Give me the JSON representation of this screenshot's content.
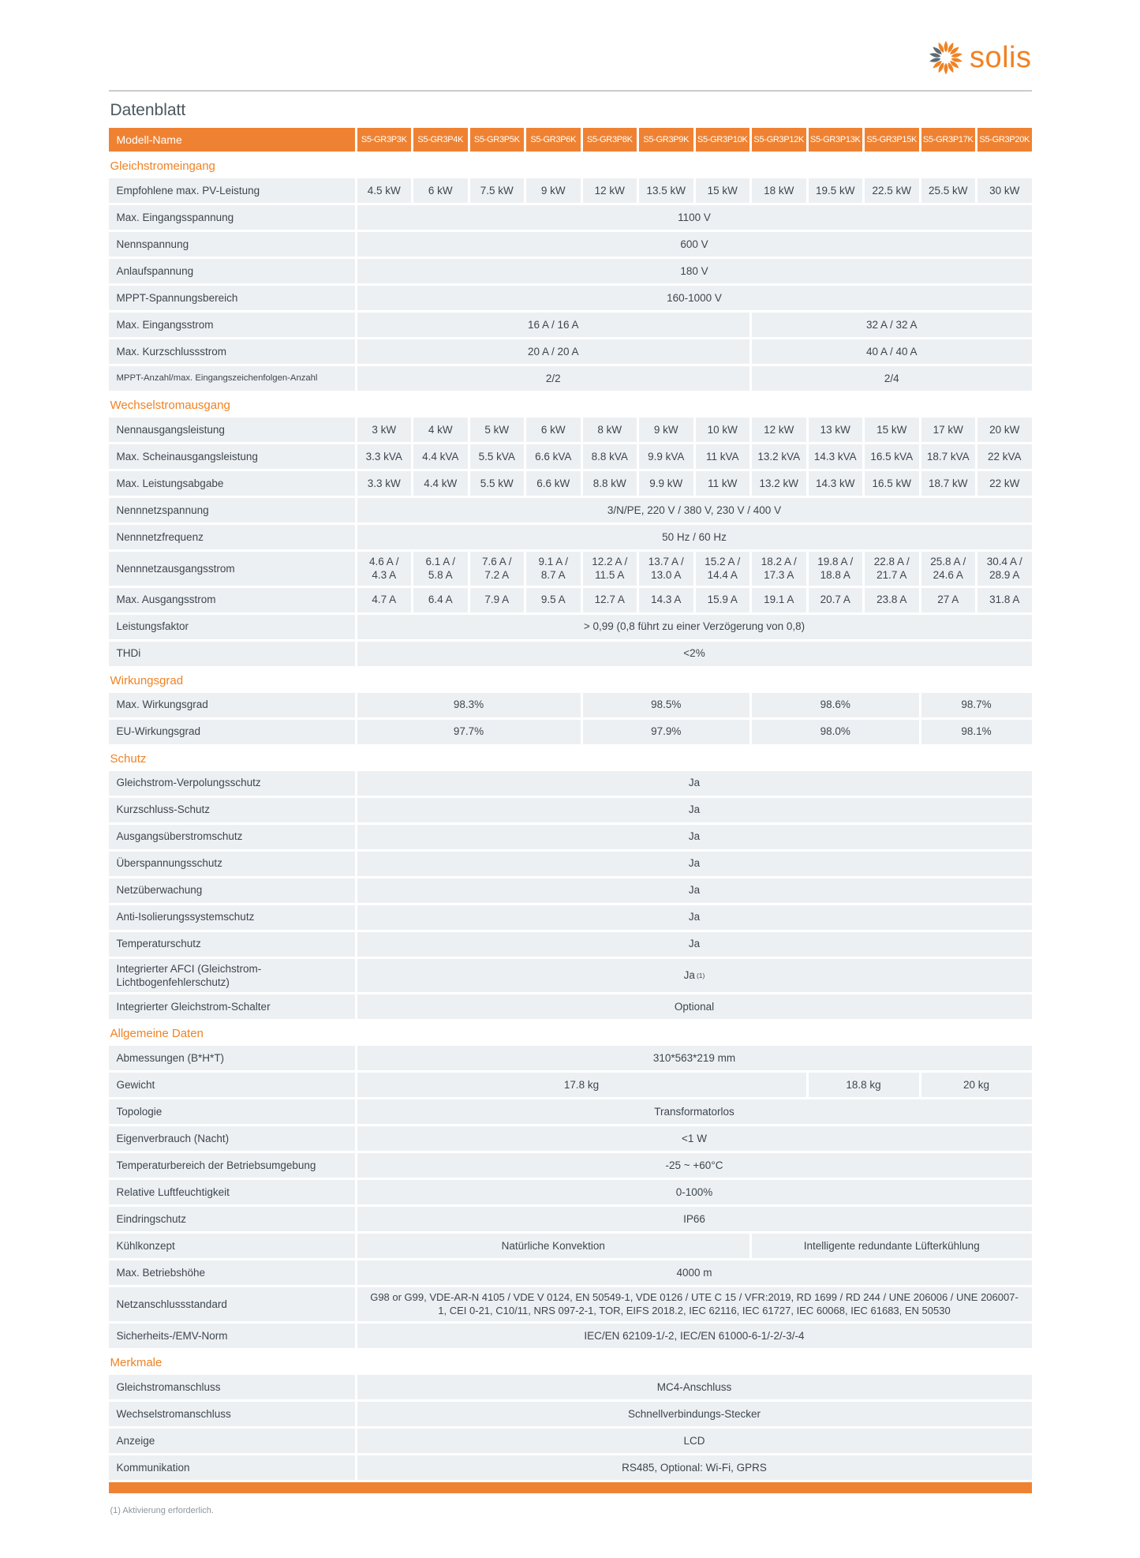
{
  "page": {
    "title": "Datenblatt",
    "footnote": "(1) Aktivierung erforderlich."
  },
  "brand": {
    "name": "solis",
    "logo_icon": "sun-swirl-icon",
    "accent_color": "#f08223"
  },
  "colors": {
    "header_fill": "#ef8232",
    "row_fill": "#edf0f3",
    "text": "#3d464e",
    "section_title": "#f08223",
    "bottom_bar": "#ef8232"
  },
  "table": {
    "header": {
      "label": "Modell-Name",
      "models": [
        "S5-GR3P3K",
        "S5-GR3P4K",
        "S5-GR3P5K",
        "S5-GR3P6K",
        "S5-GR3P8K",
        "S5-GR3P9K",
        "S5-GR3P10K",
        "S5-GR3P12K",
        "S5-GR3P13K",
        "S5-GR3P15K",
        "S5-GR3P17K",
        "S5-GR3P20K"
      ]
    },
    "sections": [
      {
        "title": "Gleichstromeingang",
        "rows": [
          {
            "label": "Empfohlene max. PV-Leistung",
            "cells": [
              {
                "t": "4.5 kW"
              },
              {
                "t": "6 kW"
              },
              {
                "t": "7.5 kW"
              },
              {
                "t": "9 kW"
              },
              {
                "t": "12 kW"
              },
              {
                "t": "13.5 kW"
              },
              {
                "t": "15 kW"
              },
              {
                "t": "18 kW"
              },
              {
                "t": "19.5 kW"
              },
              {
                "t": "22.5 kW"
              },
              {
                "t": "25.5 kW"
              },
              {
                "t": "30 kW"
              }
            ]
          },
          {
            "label": "Max. Eingangsspannung",
            "cells": [
              {
                "t": "1100 V",
                "s": 12
              }
            ]
          },
          {
            "label": "Nennspannung",
            "cells": [
              {
                "t": "600 V",
                "s": 12
              }
            ]
          },
          {
            "label": "Anlaufspannung",
            "cells": [
              {
                "t": "180 V",
                "s": 12
              }
            ]
          },
          {
            "label": "MPPT-Spannungsbereich",
            "cells": [
              {
                "t": "160-1000 V",
                "s": 12
              }
            ]
          },
          {
            "label": "Max. Eingangsstrom",
            "cells": [
              {
                "t": "16 A / 16 A",
                "s": 7
              },
              {
                "t": "32 A / 32 A",
                "s": 5
              }
            ]
          },
          {
            "label": "Max. Kurzschlussstrom",
            "cells": [
              {
                "t": "20 A / 20 A",
                "s": 7
              },
              {
                "t": "40 A / 40 A",
                "s": 5
              }
            ]
          },
          {
            "label": "MPPT-Anzahl/max. Eingangszeichenfolgen-Anzahl",
            "small": true,
            "cells": [
              {
                "t": "2/2",
                "s": 7
              },
              {
                "t": "2/4",
                "s": 5
              }
            ]
          }
        ]
      },
      {
        "title": "Wechselstromausgang",
        "rows": [
          {
            "label": "Nennausgangsleistung",
            "cells": [
              {
                "t": "3 kW"
              },
              {
                "t": "4 kW"
              },
              {
                "t": "5 kW"
              },
              {
                "t": "6 kW"
              },
              {
                "t": "8 kW"
              },
              {
                "t": "9 kW"
              },
              {
                "t": "10 kW"
              },
              {
                "t": "12 kW"
              },
              {
                "t": "13 kW"
              },
              {
                "t": "15 kW"
              },
              {
                "t": "17 kW"
              },
              {
                "t": "20 kW"
              }
            ]
          },
          {
            "label": "Max. Scheinausgangsleistung",
            "cells": [
              {
                "t": "3.3 kVA"
              },
              {
                "t": "4.4 kVA"
              },
              {
                "t": "5.5 kVA"
              },
              {
                "t": "6.6 kVA"
              },
              {
                "t": "8.8 kVA"
              },
              {
                "t": "9.9 kVA"
              },
              {
                "t": "11 kVA"
              },
              {
                "t": "13.2 kVA"
              },
              {
                "t": "14.3 kVA"
              },
              {
                "t": "16.5 kVA"
              },
              {
                "t": "18.7 kVA"
              },
              {
                "t": "22 kVA"
              }
            ]
          },
          {
            "label": "Max. Leistungsabgabe",
            "cells": [
              {
                "t": "3.3 kW"
              },
              {
                "t": "4.4 kW"
              },
              {
                "t": "5.5 kW"
              },
              {
                "t": "6.6 kW"
              },
              {
                "t": "8.8 kW"
              },
              {
                "t": "9.9 kW"
              },
              {
                "t": "11 kW"
              },
              {
                "t": "13.2 kW"
              },
              {
                "t": "14.3 kW"
              },
              {
                "t": "16.5 kW"
              },
              {
                "t": "18.7 kW"
              },
              {
                "t": "22 kW"
              }
            ]
          },
          {
            "label": "Nennnetzspannung",
            "cells": [
              {
                "t": "3/N/PE, 220 V / 380 V, 230 V / 400 V",
                "s": 12
              }
            ]
          },
          {
            "label": "Nennnetzfrequenz",
            "cells": [
              {
                "t": "50 Hz / 60 Hz",
                "s": 12
              }
            ]
          },
          {
            "label": "Nennnetzausgangsstrom",
            "cells": [
              {
                "t": "4.6 A /\n4.3 A"
              },
              {
                "t": "6.1 A /\n5.8 A"
              },
              {
                "t": "7.6 A /\n7.2 A"
              },
              {
                "t": "9.1 A /\n8.7 A"
              },
              {
                "t": "12.2 A /\n11.5 A"
              },
              {
                "t": "13.7 A /\n13.0 A"
              },
              {
                "t": "15.2 A /\n14.4 A"
              },
              {
                "t": "18.2 A /\n17.3 A"
              },
              {
                "t": "19.8 A /\n18.8 A"
              },
              {
                "t": "22.8 A /\n21.7 A"
              },
              {
                "t": "25.8 A /\n24.6 A"
              },
              {
                "t": "30.4 A /\n28.9 A"
              }
            ]
          },
          {
            "label": "Max. Ausgangsstrom",
            "cells": [
              {
                "t": "4.7 A"
              },
              {
                "t": "6.4 A"
              },
              {
                "t": "7.9 A"
              },
              {
                "t": "9.5 A"
              },
              {
                "t": "12.7 A"
              },
              {
                "t": "14.3 A"
              },
              {
                "t": "15.9 A"
              },
              {
                "t": "19.1 A"
              },
              {
                "t": "20.7 A"
              },
              {
                "t": "23.8 A"
              },
              {
                "t": "27 A"
              },
              {
                "t": "31.8 A"
              }
            ]
          },
          {
            "label": "Leistungsfaktor",
            "cells": [
              {
                "t": "> 0,99 (0,8 führt zu einer Verzögerung von 0,8)",
                "s": 12
              }
            ]
          },
          {
            "label": "THDi",
            "cells": [
              {
                "t": "<2%",
                "s": 12
              }
            ]
          }
        ]
      },
      {
        "title": "Wirkungsgrad",
        "rows": [
          {
            "label": "Max. Wirkungsgrad",
            "cells": [
              {
                "t": "98.3%",
                "s": 4
              },
              {
                "t": "98.5%",
                "s": 3
              },
              {
                "t": "98.6%",
                "s": 3
              },
              {
                "t": "98.7%",
                "s": 2
              }
            ]
          },
          {
            "label": "EU-Wirkungsgrad",
            "cells": [
              {
                "t": "97.7%",
                "s": 4
              },
              {
                "t": "97.9%",
                "s": 3
              },
              {
                "t": "98.0%",
                "s": 3
              },
              {
                "t": "98.1%",
                "s": 2
              }
            ]
          }
        ]
      },
      {
        "title": "Schutz",
        "rows": [
          {
            "label": "Gleichstrom-Verpolungsschutz",
            "cells": [
              {
                "t": "Ja",
                "s": 12
              }
            ]
          },
          {
            "label": "Kurzschluss-Schutz",
            "cells": [
              {
                "t": "Ja",
                "s": 12
              }
            ]
          },
          {
            "label": "Ausgangsüberstromschutz",
            "cells": [
              {
                "t": "Ja",
                "s": 12
              }
            ]
          },
          {
            "label": "Überspannungsschutz",
            "cells": [
              {
                "t": "Ja",
                "s": 12
              }
            ]
          },
          {
            "label": "Netzüberwachung",
            "cells": [
              {
                "t": "Ja",
                "s": 12
              }
            ]
          },
          {
            "label": "Anti-Isolierungssystemschutz",
            "cells": [
              {
                "t": "Ja",
                "s": 12
              }
            ]
          },
          {
            "label": "Temperaturschutz",
            "cells": [
              {
                "t": "Ja",
                "s": 12
              }
            ]
          },
          {
            "label": "Integrierter AFCI (Gleichstrom-\nLichtbogenfehlerschutz)",
            "cells": [
              {
                "t": "Ja",
                "sup": "(1)",
                "s": 12
              }
            ]
          },
          {
            "label": "Integrierter Gleichstrom-Schalter",
            "cells": [
              {
                "t": "Optional",
                "s": 12
              }
            ]
          }
        ]
      },
      {
        "title": "Allgemeine Daten",
        "rows": [
          {
            "label": "Abmessungen (B*H*T)",
            "cells": [
              {
                "t": "310*563*219 mm",
                "s": 12
              }
            ]
          },
          {
            "label": "Gewicht",
            "cells": [
              {
                "t": "17.8 kg",
                "s": 8
              },
              {
                "t": "18.8 kg",
                "s": 2
              },
              {
                "t": "20 kg",
                "s": 2
              }
            ]
          },
          {
            "label": "Topologie",
            "cells": [
              {
                "t": "Transformatorlos",
                "s": 12
              }
            ]
          },
          {
            "label": "Eigenverbrauch (Nacht)",
            "cells": [
              {
                "t": "<1 W",
                "s": 12
              }
            ]
          },
          {
            "label": "Temperaturbereich der Betriebsumgebung",
            "cells": [
              {
                "t": "-25 ~ +60°C",
                "s": 12
              }
            ]
          },
          {
            "label": "Relative Luftfeuchtigkeit",
            "cells": [
              {
                "t": "0-100%",
                "s": 12
              }
            ]
          },
          {
            "label": "Eindringschutz",
            "cells": [
              {
                "t": "IP66",
                "s": 12
              }
            ]
          },
          {
            "label": "Kühlkonzept",
            "cells": [
              {
                "t": "Natürliche Konvektion",
                "s": 7
              },
              {
                "t": "Intelligente redundante Lüfterkühlung",
                "s": 5
              }
            ]
          },
          {
            "label": "Max. Betriebshöhe",
            "cells": [
              {
                "t": "4000 m",
                "s": 12
              }
            ]
          },
          {
            "label": "Netzanschlussstandard",
            "wrap": true,
            "cells": [
              {
                "t": "G98 or G99, VDE-AR-N 4105 / VDE V 0124, EN 50549-1, VDE 0126 / UTE C 15 / VFR:2019, RD 1699 / RD 244 / UNE 206006 / UNE 206007-1, CEI 0-21, C10/11, NRS 097-2-1, TOR, EIFS 2018.2, IEC 62116, IEC 61727, IEC 60068, IEC 61683, EN 50530",
                "s": 12
              }
            ]
          },
          {
            "label": "Sicherheits-/EMV-Norm",
            "cells": [
              {
                "t": "IEC/EN 62109-1/-2, IEC/EN 61000-6-1/-2/-3/-4",
                "s": 12
              }
            ]
          }
        ]
      },
      {
        "title": "Merkmale",
        "rows": [
          {
            "label": "Gleichstromanschluss",
            "cells": [
              {
                "t": "MC4-Anschluss",
                "s": 12
              }
            ]
          },
          {
            "label": "Wechselstromanschluss",
            "cells": [
              {
                "t": "Schnellverbindungs-Stecker",
                "s": 12
              }
            ]
          },
          {
            "label": "Anzeige",
            "cells": [
              {
                "t": "LCD",
                "s": 12
              }
            ]
          },
          {
            "label": "Kommunikation",
            "cells": [
              {
                "t": "RS485, Optional: Wi-Fi, GPRS",
                "s": 12
              }
            ]
          }
        ]
      }
    ]
  }
}
